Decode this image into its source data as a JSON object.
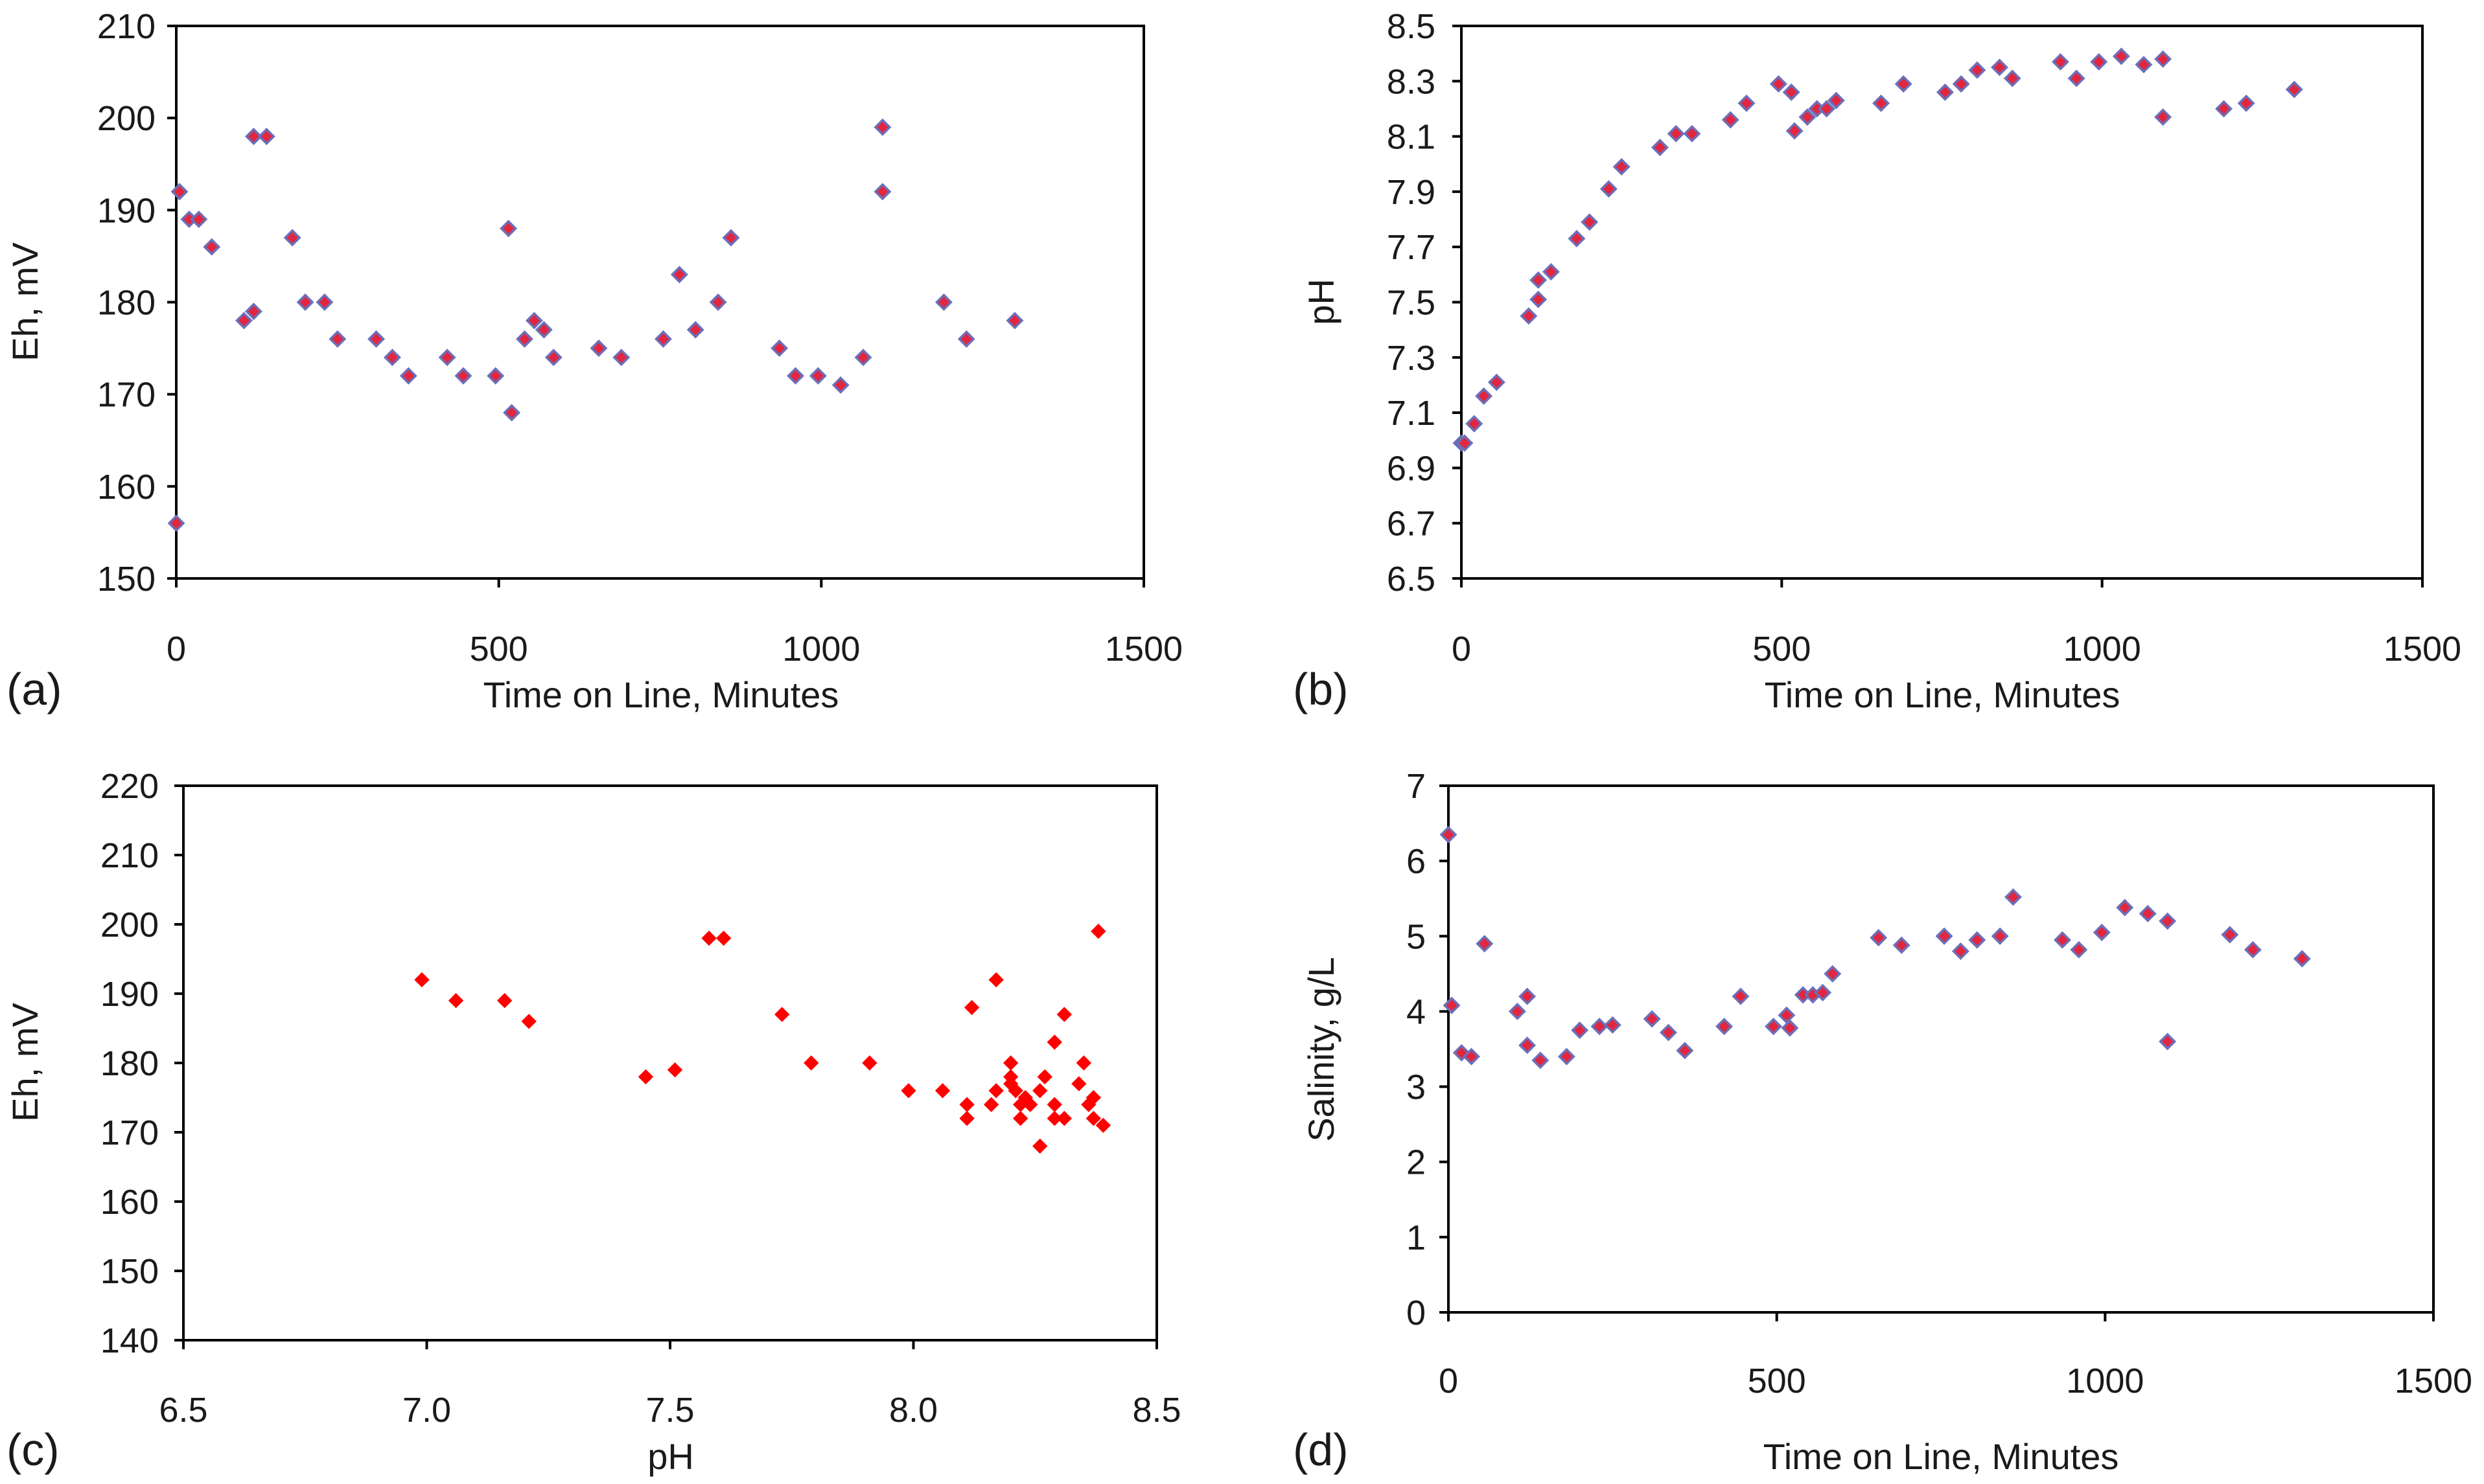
{
  "colors": {
    "marker_fill": "#e2263f",
    "marker_edge": "#6b6fb8",
    "marker_red": "#ff0000"
  },
  "chart_data": [
    {
      "id": "a",
      "type": "scatter",
      "panel_label": "(a)",
      "xlabel": "Time on Line, Minutes",
      "ylabel": "Eh, mV",
      "xlim": [
        0,
        1500
      ],
      "ylim": [
        150,
        210
      ],
      "xticks": [
        0,
        500,
        1000,
        1500
      ],
      "yticks": [
        150,
        160,
        170,
        180,
        190,
        200,
        210
      ],
      "xtick_labels": [
        "0",
        "500",
        "1000",
        "1500"
      ],
      "ytick_labels": [
        "150",
        "160",
        "170",
        "180",
        "190",
        "200",
        "210"
      ],
      "marker": "edge",
      "points": [
        [
          0,
          156
        ],
        [
          5,
          192
        ],
        [
          20,
          189
        ],
        [
          35,
          189
        ],
        [
          55,
          186
        ],
        [
          105,
          178
        ],
        [
          120,
          198
        ],
        [
          120,
          179
        ],
        [
          140,
          198
        ],
        [
          180,
          187
        ],
        [
          200,
          180
        ],
        [
          230,
          180
        ],
        [
          250,
          176
        ],
        [
          310,
          176
        ],
        [
          335,
          174
        ],
        [
          360,
          172
        ],
        [
          420,
          174
        ],
        [
          445,
          172
        ],
        [
          495,
          172
        ],
        [
          515,
          188
        ],
        [
          520,
          168
        ],
        [
          540,
          176
        ],
        [
          555,
          178
        ],
        [
          570,
          177
        ],
        [
          585,
          174
        ],
        [
          655,
          175
        ],
        [
          690,
          174
        ],
        [
          755,
          176
        ],
        [
          780,
          183
        ],
        [
          805,
          177
        ],
        [
          840,
          180
        ],
        [
          860,
          187
        ],
        [
          935,
          175
        ],
        [
          960,
          172
        ],
        [
          995,
          172
        ],
        [
          1030,
          171
        ],
        [
          1065,
          174
        ],
        [
          1095,
          199
        ],
        [
          1095,
          192
        ],
        [
          1190,
          180
        ],
        [
          1225,
          176
        ],
        [
          1300,
          178
        ]
      ]
    },
    {
      "id": "b",
      "type": "scatter",
      "panel_label": "(b)",
      "xlabel": "Time on Line, Minutes",
      "ylabel": "pH",
      "xlim": [
        0,
        1500
      ],
      "ylim": [
        6.5,
        8.5
      ],
      "xticks": [
        0,
        500,
        1000,
        1500
      ],
      "yticks": [
        6.5,
        6.7,
        6.9,
        7.1,
        7.3,
        7.5,
        7.7,
        7.9,
        8.1,
        8.3,
        8.5
      ],
      "xtick_labels": [
        "0",
        "500",
        "1000",
        "1500"
      ],
      "ytick_labels": [
        "6.5",
        "6.7",
        "6.9",
        "7.1",
        "7.3",
        "7.5",
        "7.7",
        "7.9",
        "8.1",
        "8.3",
        "8.5"
      ],
      "marker": "edge",
      "points": [
        [
          0,
          6.99
        ],
        [
          5,
          6.99
        ],
        [
          20,
          7.06
        ],
        [
          35,
          7.16
        ],
        [
          55,
          7.21
        ],
        [
          105,
          7.45
        ],
        [
          120,
          7.51
        ],
        [
          120,
          7.58
        ],
        [
          140,
          7.61
        ],
        [
          180,
          7.73
        ],
        [
          200,
          7.79
        ],
        [
          230,
          7.91
        ],
        [
          250,
          7.99
        ],
        [
          310,
          8.06
        ],
        [
          335,
          8.11
        ],
        [
          360,
          8.11
        ],
        [
          420,
          8.16
        ],
        [
          445,
          8.22
        ],
        [
          495,
          8.29
        ],
        [
          515,
          8.26
        ],
        [
          520,
          8.12
        ],
        [
          540,
          8.17
        ],
        [
          555,
          8.2
        ],
        [
          570,
          8.2
        ],
        [
          585,
          8.23
        ],
        [
          655,
          8.22
        ],
        [
          690,
          8.29
        ],
        [
          755,
          8.26
        ],
        [
          780,
          8.29
        ],
        [
          805,
          8.34
        ],
        [
          840,
          8.35
        ],
        [
          860,
          8.31
        ],
        [
          935,
          8.37
        ],
        [
          960,
          8.31
        ],
        [
          995,
          8.37
        ],
        [
          1030,
          8.39
        ],
        [
          1065,
          8.36
        ],
        [
          1095,
          8.38
        ],
        [
          1095,
          8.17
        ],
        [
          1190,
          8.2
        ],
        [
          1225,
          8.22
        ],
        [
          1300,
          8.27
        ]
      ]
    },
    {
      "id": "c",
      "type": "scatter",
      "panel_label": "(c)",
      "xlabel": "pH",
      "ylabel": "Eh, mV",
      "xlim": [
        6.5,
        8.5
      ],
      "ylim": [
        140,
        220
      ],
      "xticks": [
        6.5,
        7.0,
        7.5,
        8.0,
        8.5
      ],
      "yticks": [
        140,
        150,
        160,
        170,
        180,
        190,
        200,
        210,
        220
      ],
      "xtick_labels": [
        "6.5",
        "7.0",
        "7.5",
        "8.0",
        "8.5"
      ],
      "ytick_labels": [
        "140",
        "150",
        "160",
        "170",
        "180",
        "190",
        "200",
        "210",
        "220"
      ],
      "marker": "red",
      "points": [
        [
          6.99,
          192
        ],
        [
          7.06,
          189
        ],
        [
          7.16,
          189
        ],
        [
          7.21,
          186
        ],
        [
          7.45,
          178
        ],
        [
          7.51,
          179
        ],
        [
          7.58,
          198
        ],
        [
          7.61,
          198
        ],
        [
          7.73,
          187
        ],
        [
          7.79,
          180
        ],
        [
          7.91,
          180
        ],
        [
          7.99,
          176
        ],
        [
          8.06,
          176
        ],
        [
          8.11,
          174
        ],
        [
          8.11,
          172
        ],
        [
          8.12,
          188
        ],
        [
          8.16,
          174
        ],
        [
          8.17,
          192
        ],
        [
          8.17,
          176
        ],
        [
          8.2,
          180
        ],
        [
          8.2,
          178
        ],
        [
          8.2,
          177
        ],
        [
          8.21,
          176
        ],
        [
          8.22,
          174
        ],
        [
          8.22,
          172
        ],
        [
          8.23,
          175
        ],
        [
          8.24,
          174
        ],
        [
          8.26,
          176
        ],
        [
          8.26,
          168
        ],
        [
          8.27,
          178
        ],
        [
          8.29,
          174
        ],
        [
          8.29,
          183
        ],
        [
          8.29,
          172
        ],
        [
          8.31,
          187
        ],
        [
          8.31,
          172
        ],
        [
          8.34,
          177
        ],
        [
          8.35,
          180
        ],
        [
          8.36,
          174
        ],
        [
          8.37,
          175
        ],
        [
          8.37,
          172
        ],
        [
          8.38,
          199
        ],
        [
          8.39,
          171
        ]
      ]
    },
    {
      "id": "d",
      "type": "scatter",
      "panel_label": "(d)",
      "xlabel": "Time on Line, Minutes",
      "ylabel": "Salinity, g/L",
      "xlim": [
        0,
        1500
      ],
      "ylim": [
        0,
        7
      ],
      "xticks": [
        0,
        500,
        1000,
        1500
      ],
      "yticks": [
        0,
        1,
        2,
        3,
        4,
        5,
        6,
        7
      ],
      "xtick_labels": [
        "0",
        "500",
        "1000",
        "1500"
      ],
      "ytick_labels": [
        "0",
        "1",
        "2",
        "3",
        "4",
        "5",
        "6",
        "7"
      ],
      "marker": "edge",
      "points": [
        [
          0,
          6.35
        ],
        [
          5,
          4.08
        ],
        [
          20,
          3.45
        ],
        [
          35,
          3.4
        ],
        [
          55,
          4.9
        ],
        [
          105,
          4.0
        ],
        [
          120,
          4.2
        ],
        [
          120,
          3.55
        ],
        [
          140,
          3.35
        ],
        [
          180,
          3.4
        ],
        [
          200,
          3.75
        ],
        [
          230,
          3.8
        ],
        [
          250,
          3.82
        ],
        [
          310,
          3.9
        ],
        [
          335,
          3.72
        ],
        [
          360,
          3.48
        ],
        [
          420,
          3.8
        ],
        [
          445,
          4.2
        ],
        [
          495,
          3.8
        ],
        [
          515,
          3.95
        ],
        [
          520,
          3.78
        ],
        [
          540,
          4.22
        ],
        [
          555,
          4.22
        ],
        [
          570,
          4.25
        ],
        [
          585,
          4.5
        ],
        [
          655,
          4.98
        ],
        [
          690,
          4.88
        ],
        [
          755,
          5.0
        ],
        [
          780,
          4.8
        ],
        [
          805,
          4.95
        ],
        [
          840,
          5.0
        ],
        [
          860,
          5.52
        ],
        [
          935,
          4.95
        ],
        [
          960,
          4.82
        ],
        [
          995,
          5.05
        ],
        [
          1030,
          5.38
        ],
        [
          1065,
          5.3
        ],
        [
          1095,
          5.2
        ],
        [
          1095,
          3.6
        ],
        [
          1190,
          5.02
        ],
        [
          1225,
          4.82
        ],
        [
          1300,
          4.7
        ]
      ]
    }
  ]
}
